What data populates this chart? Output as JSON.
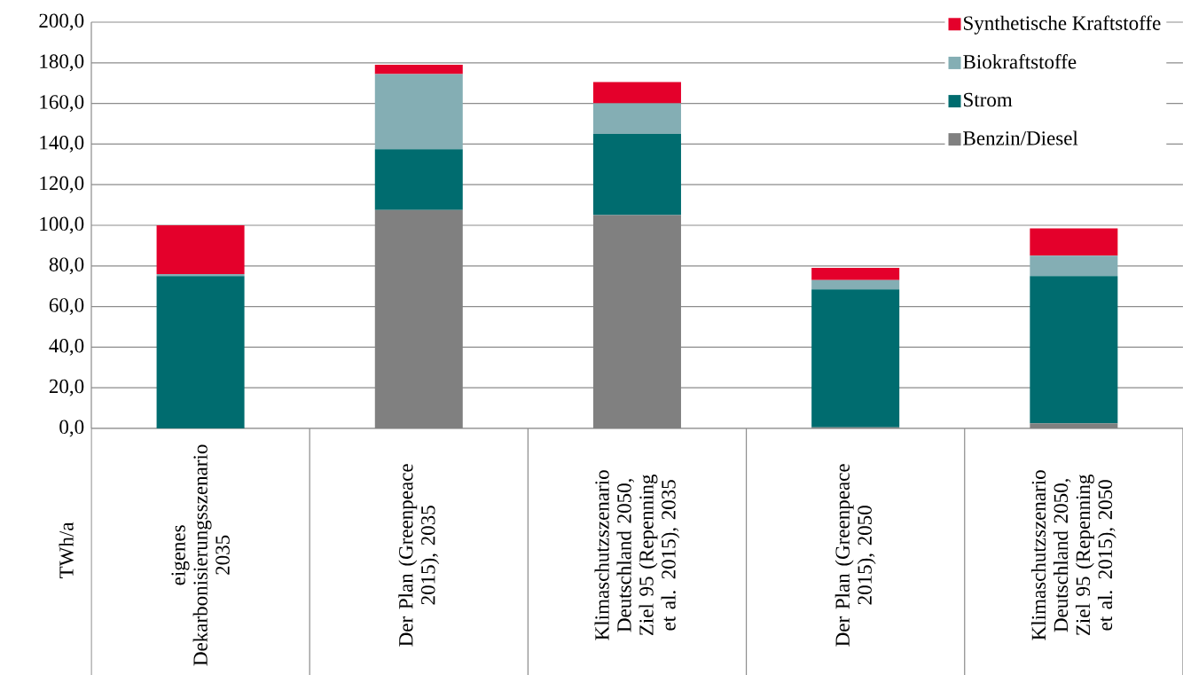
{
  "chart_data": {
    "type": "bar",
    "stacked": true,
    "ylabel": "TWh/a",
    "categories": [
      "eigenes Dekarbonisierungsszenario 2035",
      "Der Plan (Greenpeace 2015), 2035",
      "Klimaschutzszenario Deutschland 2050, Ziel 95 (Repenning et al. 2015), 2035",
      "Der Plan (Greenpeace 2015), 2050",
      "Klimaschutzszenario Deutschland 2050, Ziel 95 (Repenning et al. 2015), 2050"
    ],
    "series": [
      {
        "name": "Benzin/Diesel",
        "color": "#808080",
        "values": [
          0,
          107.5,
          105,
          0.5,
          2.5
        ]
      },
      {
        "name": "Strom",
        "color": "#006c6f",
        "values": [
          75,
          30,
          40,
          68,
          72.5
        ]
      },
      {
        "name": "Biokraftstoffe",
        "color": "#84aeb4",
        "values": [
          1,
          37,
          15,
          4.5,
          10
        ]
      },
      {
        "name": "Synthetische Kraftstoffe",
        "color": "#e4002b",
        "values": [
          24,
          4.5,
          10.5,
          6,
          13.5
        ]
      }
    ],
    "ylim": [
      0,
      200
    ],
    "yticks": [
      {
        "value": 0,
        "label": "0,0"
      },
      {
        "value": 20,
        "label": "20,0"
      },
      {
        "value": 40,
        "label": "40,0"
      },
      {
        "value": 60,
        "label": "60,0"
      },
      {
        "value": 80,
        "label": "80,0"
      },
      {
        "value": 100,
        "label": "100,0"
      },
      {
        "value": 120,
        "label": "120,0"
      },
      {
        "value": 140,
        "label": "140,0"
      },
      {
        "value": 160,
        "label": "160,0"
      },
      {
        "value": 180,
        "label": "180,0"
      },
      {
        "value": 200,
        "label": "200,0"
      }
    ],
    "grid": "y",
    "legend": "top right"
  }
}
